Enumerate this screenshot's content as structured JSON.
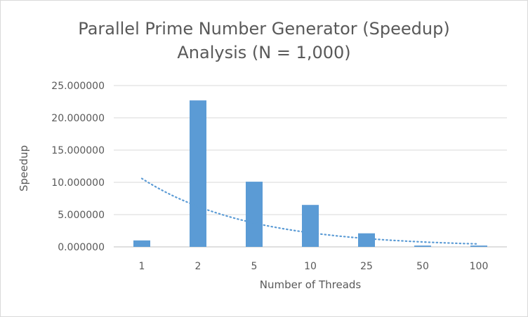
{
  "chart_data": {
    "type": "bar",
    "title_lines": [
      "Parallel Prime Number Generator (Speedup)",
      "Analysis (N = 1,000)"
    ],
    "xlabel": "Number of Threads",
    "ylabel": "Speedup",
    "categories": [
      "1",
      "2",
      "5",
      "10",
      "25",
      "50",
      "100"
    ],
    "values": [
      1.0,
      22.7,
      10.1,
      6.5,
      2.1,
      0.2,
      0.2
    ],
    "ylim": [
      0,
      25
    ],
    "yticks": [
      "0.000000",
      "5.000000",
      "10.000000",
      "15.000000",
      "20.000000",
      "25.000000"
    ],
    "trendline": {
      "type": "exponential",
      "style": "dotted",
      "start_value": 10.6,
      "end_value": 0.45
    },
    "bar_color": "#5b9bd5",
    "grid": true,
    "legend": "none"
  }
}
